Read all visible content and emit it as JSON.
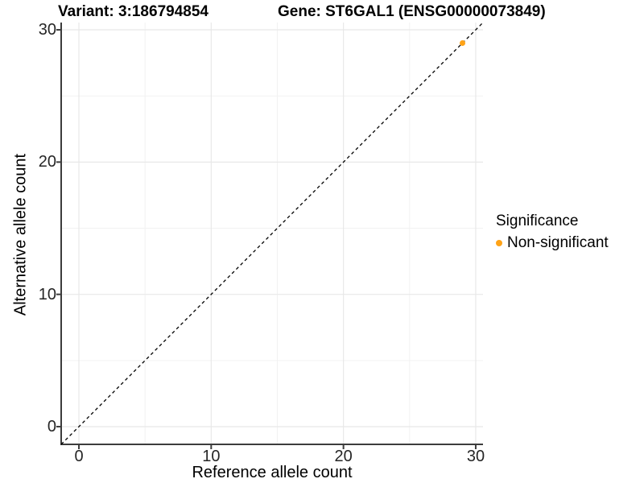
{
  "header": {
    "variant_title": "Variant: 3:186794854",
    "gene_title": "Gene: ST6GAL1 (ENSG00000073849)"
  },
  "legend": {
    "title": "Significance",
    "items": [
      {
        "label": "Non-significant",
        "color": "#FFA317",
        "marker": "circle-icon"
      }
    ]
  },
  "colors": {
    "background": "#ffffff",
    "axis_line": "#3c3c3c",
    "tick_text": "#262626",
    "grid_major": "#e8e8e8",
    "grid_minor": "#f2f2f2",
    "reference_line": "#000000",
    "point_orange": "#FFA317"
  },
  "chart_data": {
    "type": "scatter",
    "title": "Variant: 3:186794854   Gene: ST6GAL1 (ENSG00000073849)",
    "xlabel": "Reference allele count",
    "ylabel": "Alternative allele count",
    "xlim": [
      -1.34,
      30.55
    ],
    "ylim": [
      -1.34,
      30.55
    ],
    "x_ticks": [
      0,
      10,
      20,
      30
    ],
    "y_ticks": [
      0,
      10,
      20,
      30
    ],
    "x_minor_ticks": [
      5,
      15,
      25
    ],
    "y_minor_ticks": [
      5,
      15,
      25
    ],
    "grid": true,
    "legend_position": "right",
    "series": [
      {
        "name": "Non-significant",
        "color": "#FFA317",
        "points": [
          {
            "x": 29,
            "y": 29
          }
        ]
      }
    ],
    "reference_line": {
      "kind": "abline",
      "slope": 1,
      "intercept": 0,
      "style": "dashed",
      "color": "#000000"
    }
  }
}
